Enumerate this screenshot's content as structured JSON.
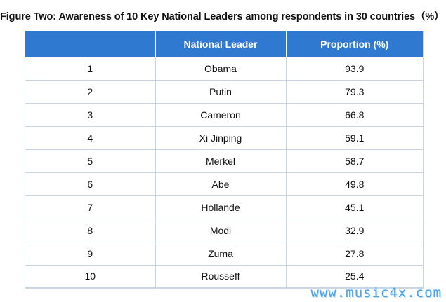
{
  "title": "Figure Two: Awareness of 10 Key National Leaders among respondents in 30 countries（%）",
  "table": {
    "headers": [
      "",
      "National Leader",
      "Proportion (%)"
    ],
    "rows": [
      {
        "rank": "1",
        "leader": "Obama",
        "proportion": "93.9"
      },
      {
        "rank": "2",
        "leader": "Putin",
        "proportion": "79.3"
      },
      {
        "rank": "3",
        "leader": "Cameron",
        "proportion": "66.8"
      },
      {
        "rank": "4",
        "leader": "Xi Jinping",
        "proportion": "59.1"
      },
      {
        "rank": "5",
        "leader": "Merkel",
        "proportion": "58.7"
      },
      {
        "rank": "6",
        "leader": "Abe",
        "proportion": "49.8"
      },
      {
        "rank": "7",
        "leader": "Hollande",
        "proportion": "45.1"
      },
      {
        "rank": "8",
        "leader": "Modi",
        "proportion": "32.9"
      },
      {
        "rank": "9",
        "leader": "Zuma",
        "proportion": "27.8"
      },
      {
        "rank": "10",
        "leader": "Rousseff",
        "proportion": "25.4"
      }
    ]
  },
  "colors": {
    "header_bg": "#2f7ad0",
    "header_text": "#ffffff",
    "grid": "#c8d6e3",
    "watermark": "#4aa3e8"
  },
  "watermark": "www.music4x.com"
}
